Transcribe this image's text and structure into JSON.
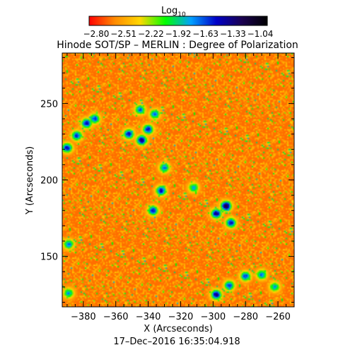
{
  "chart_data": {
    "type": "heatmap",
    "title": "Hinode SOT/SP – MERLIN : Degree of Polarization",
    "colorbar": {
      "label": "Log",
      "label_subscript": "10",
      "ticks": [
        "−2.80",
        "−2.51",
        "−2.22",
        "−1.92",
        "−1.63",
        "−1.33",
        "−1.04"
      ],
      "range": [
        -2.8,
        -1.04
      ],
      "colors": [
        "#ff0000",
        "#ff8a00",
        "#ffd700",
        "#00ff00",
        "#00a0ff",
        "#0000c8",
        "#1a0050",
        "#000000"
      ]
    },
    "xlabel": "X (Arcseconds)",
    "ylabel": "Y (Arcseconds)",
    "xlim": [
      -393,
      -250
    ],
    "ylim": [
      117,
      283
    ],
    "xticks": [
      -380,
      -360,
      -340,
      -320,
      -300,
      -280,
      -260
    ],
    "xtick_labels": [
      "−380",
      "−360",
      "−340",
      "−320",
      "−300",
      "−280",
      "−260"
    ],
    "yticks": [
      150,
      200,
      250
    ],
    "ytick_labels": [
      "150",
      "200",
      "250"
    ],
    "background_level": -2.6,
    "features": [
      {
        "x": -390,
        "y": 221,
        "level": -1.5
      },
      {
        "x": -384,
        "y": 229,
        "level": -1.6
      },
      {
        "x": -378,
        "y": 237,
        "level": -1.5
      },
      {
        "x": -373,
        "y": 240,
        "level": -1.6
      },
      {
        "x": -352,
        "y": 230,
        "level": -1.5
      },
      {
        "x": -344,
        "y": 226,
        "level": -1.4
      },
      {
        "x": -340,
        "y": 233,
        "level": -1.5
      },
      {
        "x": -336,
        "y": 243,
        "level": -1.7
      },
      {
        "x": -345,
        "y": 246,
        "level": -1.7
      },
      {
        "x": -330,
        "y": 208,
        "level": -1.7
      },
      {
        "x": -332,
        "y": 193,
        "level": -1.5
      },
      {
        "x": -337,
        "y": 180,
        "level": -1.5
      },
      {
        "x": -312,
        "y": 195,
        "level": -1.8
      },
      {
        "x": -292,
        "y": 183,
        "level": -1.2
      },
      {
        "x": -298,
        "y": 178,
        "level": -1.4
      },
      {
        "x": -289,
        "y": 172,
        "level": -1.5
      },
      {
        "x": -298,
        "y": 125,
        "level": -1.4
      },
      {
        "x": -290,
        "y": 131,
        "level": -1.6
      },
      {
        "x": -280,
        "y": 137,
        "level": -1.6
      },
      {
        "x": -270,
        "y": 138,
        "level": -1.7
      },
      {
        "x": -389,
        "y": 158,
        "level": -1.7
      },
      {
        "x": -389,
        "y": 126,
        "level": -1.8
      },
      {
        "x": -262,
        "y": 130,
        "level": -1.8
      }
    ]
  },
  "footer_timestamp": "17–Dec–2016 16:35:04.918"
}
